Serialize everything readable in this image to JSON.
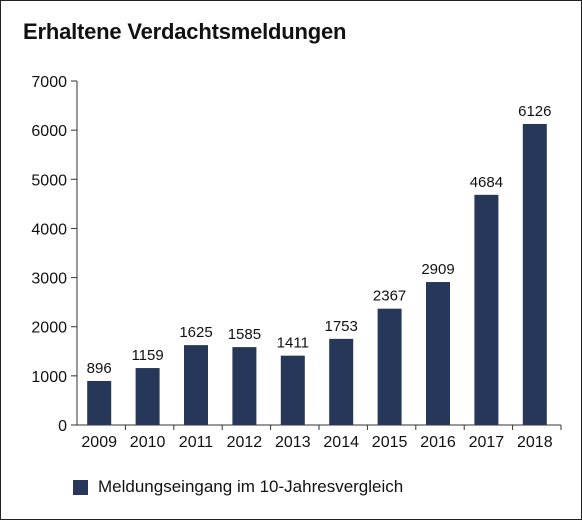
{
  "chart_data": {
    "type": "bar",
    "title": "Erhaltene Verdachtsmeldungen",
    "categories": [
      "2009",
      "2010",
      "2011",
      "2012",
      "2013",
      "2014",
      "2015",
      "2016",
      "2017",
      "2018"
    ],
    "series": [
      {
        "name": "Meldungseingang im 10-Jahresvergleich",
        "values": [
          896,
          1159,
          1625,
          1585,
          1411,
          1753,
          2367,
          2909,
          4684,
          6126
        ]
      }
    ],
    "yticks": [
      "0",
      "1000",
      "2000",
      "3000",
      "4000",
      "5000",
      "6000",
      "7000"
    ],
    "ylim": [
      0,
      7000
    ],
    "grid": false,
    "legend_position": "bottom-left",
    "bar_color": "#263759",
    "axis_color": "#333333"
  }
}
